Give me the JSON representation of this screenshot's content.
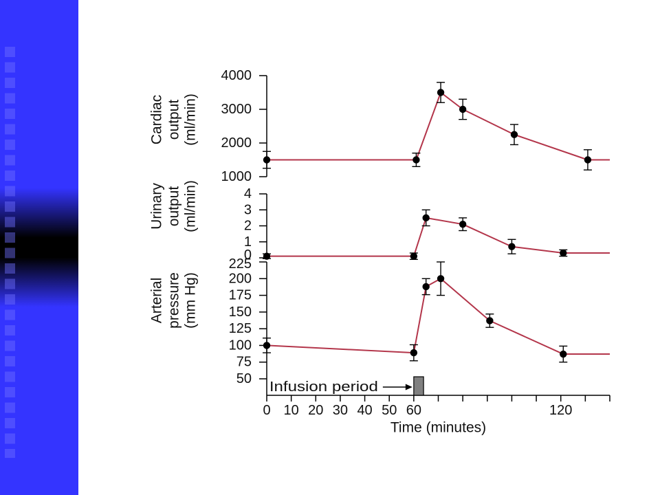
{
  "theme": {
    "sidebar_blue": "#3434ff",
    "sidebar_dark": "#000000",
    "line_color": "#b3354a",
    "marker_color": "#000000",
    "infusion_bar_color": "#808080"
  },
  "chart_data": [
    {
      "type": "line",
      "ylabel_lines": [
        "Cardiac",
        "output",
        "(ml/min)"
      ],
      "xlim": [
        0,
        140
      ],
      "ylim": [
        1000,
        4000
      ],
      "yticks": [
        1000,
        2000,
        3000,
        4000
      ],
      "ytick_labels": [
        "1000",
        "2000",
        "3000",
        "4000"
      ],
      "grid": false,
      "series": [
        {
          "x": [
            0,
            61,
            71,
            80,
            101,
            131
          ],
          "y": [
            1500,
            1500,
            3500,
            3000,
            2250,
            1500
          ],
          "error": [
            250,
            200,
            300,
            300,
            300,
            300
          ],
          "line_end_x": 140
        }
      ]
    },
    {
      "type": "line",
      "ylabel_lines": [
        "Urinary",
        "output",
        "(ml/min)"
      ],
      "xlim": [
        0,
        140
      ],
      "ylim": [
        0,
        4
      ],
      "yticks": [
        0,
        1,
        2,
        3,
        4
      ],
      "ytick_labels": [
        "0",
        "1",
        "2",
        "3",
        "4"
      ],
      "grid": false,
      "series": [
        {
          "x": [
            0,
            60,
            65,
            80,
            100,
            121
          ],
          "y": [
            0.1,
            0.1,
            2.5,
            2.1,
            0.7,
            0.3
          ],
          "error": [
            0.15,
            0.2,
            0.5,
            0.4,
            0.45,
            0.2
          ],
          "line_end_x": 140
        }
      ]
    },
    {
      "type": "line",
      "ylabel_lines": [
        "Arterial",
        "pressure",
        "(mm Hg)"
      ],
      "xlabel": "Time (minutes)",
      "xlim": [
        0,
        140
      ],
      "ylim": [
        50,
        225
      ],
      "xticks": [
        0,
        10,
        20,
        30,
        40,
        50,
        60,
        70,
        80,
        90,
        100,
        110,
        120,
        130,
        140
      ],
      "xtick_labels": [
        {
          "at": 0,
          "text": "0"
        },
        {
          "at": 10,
          "text": "10"
        },
        {
          "at": 20,
          "text": "20"
        },
        {
          "at": 30,
          "text": "30"
        },
        {
          "at": 40,
          "text": "40"
        },
        {
          "at": 50,
          "text": "50"
        },
        {
          "at": 60,
          "text": "60"
        },
        {
          "at": 120,
          "text": "120"
        }
      ],
      "yticks": [
        50,
        75,
        100,
        125,
        150,
        175,
        200,
        225
      ],
      "ytick_labels": [
        "50",
        "75",
        "100",
        "125",
        "150",
        "175",
        "200",
        "225"
      ],
      "grid": false,
      "series": [
        {
          "x": [
            0,
            60,
            65,
            71,
            91,
            121
          ],
          "y": [
            100,
            89,
            188,
            200,
            137,
            87
          ],
          "error": [
            11,
            12,
            12,
            25,
            10,
            12
          ],
          "line_end_x": 140
        }
      ],
      "infusion_period": {
        "label": "Infusion period",
        "start": 60,
        "end": 64
      }
    }
  ]
}
